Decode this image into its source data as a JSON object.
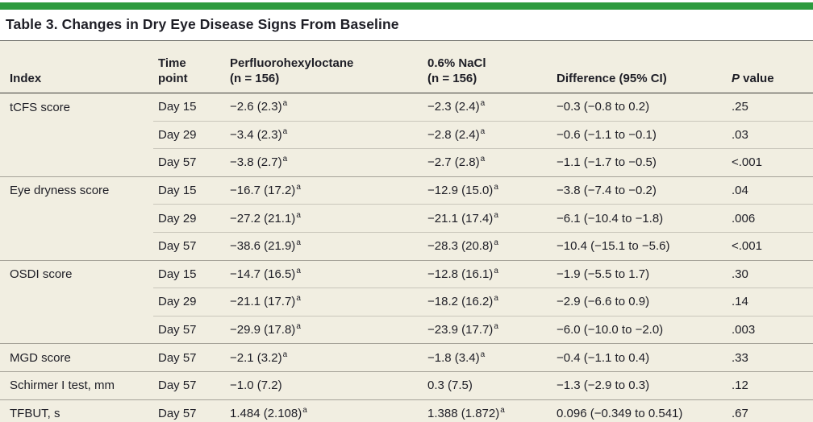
{
  "colors": {
    "accent_green": "#2d9b3e",
    "row_beige": "#f1eee1",
    "text": "#1e1e26",
    "group_rule": "#a5a298",
    "sub_rule": "#c9c6bb",
    "bottom_rule": "#17171c"
  },
  "title": "Table 3. Changes in Dry Eye Disease Signs From Baseline",
  "table": {
    "columns": [
      {
        "label": "Index"
      },
      {
        "line1": "Time",
        "line2": "point"
      },
      {
        "line1": "Perfluorohexyloctane",
        "line2": "(n = 156)"
      },
      {
        "line1": "0.6% NaCl",
        "line2": "(n = 156)"
      },
      {
        "label": "Difference (95% CI)"
      },
      {
        "p_italic": "P",
        "p_rest": " value"
      }
    ],
    "rows": [
      {
        "index": "tCFS score",
        "time": "Day 15",
        "pfho": "−2.6 (2.3)",
        "pfho_sup": "a",
        "nacl": "−2.3 (2.4)",
        "nacl_sup": "a",
        "diff": "−0.3 (−0.8 to 0.2)",
        "p": ".25",
        "rule": "none"
      },
      {
        "index": "",
        "time": "Day 29",
        "pfho": "−3.4 (2.3)",
        "pfho_sup": "a",
        "nacl": "−2.8 (2.4)",
        "nacl_sup": "a",
        "diff": "−0.6 (−1.1 to −0.1)",
        "p": ".03",
        "rule": "sub"
      },
      {
        "index": "",
        "time": "Day 57",
        "pfho": "−3.8 (2.7)",
        "pfho_sup": "a",
        "nacl": "−2.7 (2.8)",
        "nacl_sup": "a",
        "diff": "−1.1 (−1.7 to −0.5)",
        "p": "<.001",
        "rule": "sub"
      },
      {
        "index": "Eye dryness score",
        "time": "Day 15",
        "pfho": "−16.7 (17.2)",
        "pfho_sup": "a",
        "nacl": "−12.9 (15.0)",
        "nacl_sup": "a",
        "diff": "−3.8 (−7.4 to −0.2)",
        "p": ".04",
        "rule": "group"
      },
      {
        "index": "",
        "time": "Day 29",
        "pfho": "−27.2 (21.1)",
        "pfho_sup": "a",
        "nacl": "−21.1 (17.4)",
        "nacl_sup": "a",
        "diff": "−6.1 (−10.4 to −1.8)",
        "p": ".006",
        "rule": "sub"
      },
      {
        "index": "",
        "time": "Day 57",
        "pfho": "−38.6 (21.9)",
        "pfho_sup": "a",
        "nacl": "−28.3 (20.8)",
        "nacl_sup": "a",
        "diff": "−10.4 (−15.1 to −5.6)",
        "p": "<.001",
        "rule": "sub"
      },
      {
        "index": "OSDI score",
        "time": "Day 15",
        "pfho": "−14.7 (16.5)",
        "pfho_sup": "a",
        "nacl": "−12.8 (16.1)",
        "nacl_sup": "a",
        "diff": "−1.9 (−5.5 to 1.7)",
        "p": ".30",
        "rule": "group"
      },
      {
        "index": "",
        "time": "Day 29",
        "pfho": "−21.1 (17.7)",
        "pfho_sup": "a",
        "nacl": "−18.2 (16.2)",
        "nacl_sup": "a",
        "diff": "−2.9 (−6.6 to 0.9)",
        "p": ".14",
        "rule": "sub"
      },
      {
        "index": "",
        "time": "Day 57",
        "pfho": "−29.9 (17.8)",
        "pfho_sup": "a",
        "nacl": "−23.9 (17.7)",
        "nacl_sup": "a",
        "diff": "−6.0 (−10.0 to −2.0)",
        "p": ".003",
        "rule": "sub"
      },
      {
        "index": "MGD score",
        "time": "Day 57",
        "pfho": "−2.1 (3.2)",
        "pfho_sup": "a",
        "nacl": "−1.8 (3.4)",
        "nacl_sup": "a",
        "diff": "−0.4 (−1.1 to 0.4)",
        "p": ".33",
        "rule": "group"
      },
      {
        "index": "Schirmer I test, mm",
        "time": "Day 57",
        "pfho": "−1.0 (7.2)",
        "pfho_sup": "",
        "nacl": "0.3 (7.5)",
        "nacl_sup": "",
        "diff": "−1.3 (−2.9 to 0.3)",
        "p": ".12",
        "rule": "group"
      },
      {
        "index": "TFBUT, s",
        "time": "Day 57",
        "pfho": "1.484 (2.108)",
        "pfho_sup": "a",
        "nacl": "1.388 (1.872)",
        "nacl_sup": "a",
        "diff": "0.096 (−0.349 to 0.541)",
        "p": ".67",
        "rule": "group"
      }
    ]
  }
}
